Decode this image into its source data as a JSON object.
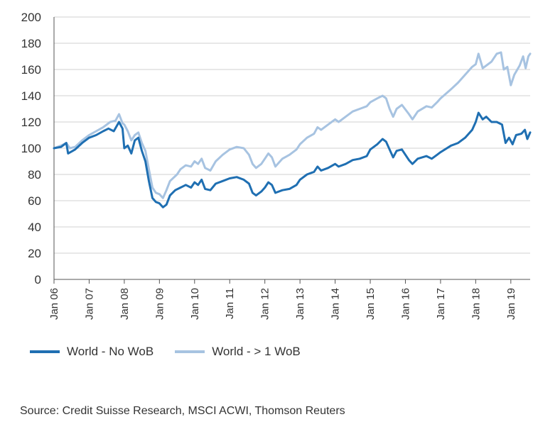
{
  "chart_data": {
    "type": "line",
    "title": "",
    "xlabel": "",
    "ylabel": "",
    "ylim": [
      0,
      200
    ],
    "yticks": [
      "0",
      "20",
      "40",
      "60",
      "80",
      "100",
      "120",
      "140",
      "160",
      "180",
      "200"
    ],
    "xticks": [
      "Jan 06",
      "Jan 07",
      "Jan 08",
      "Jan 09",
      "Jan 10",
      "Jan 11",
      "Jan 12",
      "Jan 13",
      "Jan 14",
      "Jan 15",
      "Jan 16",
      "Jan 17",
      "Jan 18",
      "Jan 19"
    ],
    "xlim": [
      2006.0,
      2019.55
    ],
    "grid": true,
    "legend_position": "bottom-left",
    "series": [
      {
        "name": "World - No WoB",
        "color": "#1f6fb2",
        "points": [
          [
            2006.0,
            100
          ],
          [
            2006.2,
            101
          ],
          [
            2006.35,
            104
          ],
          [
            2006.4,
            96
          ],
          [
            2006.6,
            99
          ],
          [
            2006.8,
            104
          ],
          [
            2007.0,
            108
          ],
          [
            2007.2,
            110
          ],
          [
            2007.4,
            113
          ],
          [
            2007.55,
            115
          ],
          [
            2007.7,
            113
          ],
          [
            2007.85,
            120
          ],
          [
            2007.95,
            115
          ],
          [
            2008.0,
            100
          ],
          [
            2008.1,
            102
          ],
          [
            2008.2,
            96
          ],
          [
            2008.3,
            106
          ],
          [
            2008.4,
            108
          ],
          [
            2008.5,
            98
          ],
          [
            2008.6,
            90
          ],
          [
            2008.7,
            75
          ],
          [
            2008.8,
            62
          ],
          [
            2008.9,
            59
          ],
          [
            2009.0,
            58
          ],
          [
            2009.1,
            55
          ],
          [
            2009.2,
            57
          ],
          [
            2009.3,
            64
          ],
          [
            2009.45,
            68
          ],
          [
            2009.6,
            70
          ],
          [
            2009.75,
            72
          ],
          [
            2009.9,
            70
          ],
          [
            2010.0,
            74
          ],
          [
            2010.1,
            72
          ],
          [
            2010.2,
            76
          ],
          [
            2010.3,
            69
          ],
          [
            2010.45,
            68
          ],
          [
            2010.6,
            73
          ],
          [
            2010.8,
            75
          ],
          [
            2011.0,
            77
          ],
          [
            2011.2,
            78
          ],
          [
            2011.4,
            76
          ],
          [
            2011.55,
            73
          ],
          [
            2011.65,
            66
          ],
          [
            2011.75,
            64
          ],
          [
            2011.9,
            67
          ],
          [
            2012.0,
            70
          ],
          [
            2012.1,
            74
          ],
          [
            2012.2,
            72
          ],
          [
            2012.3,
            66
          ],
          [
            2012.5,
            68
          ],
          [
            2012.7,
            69
          ],
          [
            2012.9,
            72
          ],
          [
            2013.0,
            76
          ],
          [
            2013.2,
            80
          ],
          [
            2013.4,
            82
          ],
          [
            2013.5,
            86
          ],
          [
            2013.6,
            83
          ],
          [
            2013.8,
            85
          ],
          [
            2014.0,
            88
          ],
          [
            2014.1,
            86
          ],
          [
            2014.3,
            88
          ],
          [
            2014.5,
            91
          ],
          [
            2014.7,
            92
          ],
          [
            2014.9,
            94
          ],
          [
            2015.0,
            99
          ],
          [
            2015.2,
            103
          ],
          [
            2015.35,
            107
          ],
          [
            2015.45,
            105
          ],
          [
            2015.55,
            99
          ],
          [
            2015.65,
            93
          ],
          [
            2015.75,
            98
          ],
          [
            2015.9,
            99
          ],
          [
            2016.1,
            91
          ],
          [
            2016.2,
            88
          ],
          [
            2016.35,
            92
          ],
          [
            2016.6,
            94
          ],
          [
            2016.75,
            92
          ],
          [
            2016.9,
            95
          ],
          [
            2017.0,
            97
          ],
          [
            2017.3,
            102
          ],
          [
            2017.5,
            104
          ],
          [
            2017.7,
            108
          ],
          [
            2017.9,
            114
          ],
          [
            2018.0,
            120
          ],
          [
            2018.08,
            127
          ],
          [
            2018.2,
            122
          ],
          [
            2018.3,
            124
          ],
          [
            2018.45,
            120
          ],
          [
            2018.6,
            120
          ],
          [
            2018.75,
            118
          ],
          [
            2018.85,
            104
          ],
          [
            2018.95,
            108
          ],
          [
            2019.05,
            103
          ],
          [
            2019.15,
            110
          ],
          [
            2019.3,
            111
          ],
          [
            2019.4,
            114
          ],
          [
            2019.47,
            107
          ],
          [
            2019.55,
            112
          ]
        ]
      },
      {
        "name": "World - > 1 WoB",
        "color": "#a7c3e1",
        "points": [
          [
            2006.0,
            100
          ],
          [
            2006.2,
            102
          ],
          [
            2006.35,
            104
          ],
          [
            2006.45,
            100
          ],
          [
            2006.6,
            101
          ],
          [
            2006.8,
            106
          ],
          [
            2007.0,
            110
          ],
          [
            2007.2,
            113
          ],
          [
            2007.4,
            116
          ],
          [
            2007.6,
            120
          ],
          [
            2007.75,
            121
          ],
          [
            2007.85,
            126
          ],
          [
            2007.95,
            119
          ],
          [
            2008.0,
            118
          ],
          [
            2008.1,
            113
          ],
          [
            2008.2,
            106
          ],
          [
            2008.3,
            110
          ],
          [
            2008.4,
            112
          ],
          [
            2008.5,
            104
          ],
          [
            2008.6,
            98
          ],
          [
            2008.7,
            84
          ],
          [
            2008.8,
            70
          ],
          [
            2008.9,
            66
          ],
          [
            2009.0,
            65
          ],
          [
            2009.1,
            62
          ],
          [
            2009.2,
            68
          ],
          [
            2009.3,
            75
          ],
          [
            2009.5,
            80
          ],
          [
            2009.6,
            84
          ],
          [
            2009.75,
            87
          ],
          [
            2009.9,
            86
          ],
          [
            2010.0,
            90
          ],
          [
            2010.1,
            88
          ],
          [
            2010.2,
            92
          ],
          [
            2010.3,
            85
          ],
          [
            2010.45,
            83
          ],
          [
            2010.6,
            90
          ],
          [
            2010.8,
            95
          ],
          [
            2011.0,
            99
          ],
          [
            2011.2,
            101
          ],
          [
            2011.4,
            100
          ],
          [
            2011.55,
            95
          ],
          [
            2011.65,
            88
          ],
          [
            2011.75,
            85
          ],
          [
            2011.9,
            88
          ],
          [
            2012.0,
            92
          ],
          [
            2012.1,
            96
          ],
          [
            2012.2,
            93
          ],
          [
            2012.3,
            86
          ],
          [
            2012.5,
            92
          ],
          [
            2012.7,
            95
          ],
          [
            2012.9,
            99
          ],
          [
            2013.0,
            103
          ],
          [
            2013.2,
            108
          ],
          [
            2013.4,
            111
          ],
          [
            2013.5,
            116
          ],
          [
            2013.6,
            114
          ],
          [
            2013.8,
            118
          ],
          [
            2014.0,
            122
          ],
          [
            2014.1,
            120
          ],
          [
            2014.3,
            124
          ],
          [
            2014.5,
            128
          ],
          [
            2014.7,
            130
          ],
          [
            2014.9,
            132
          ],
          [
            2015.0,
            135
          ],
          [
            2015.2,
            138
          ],
          [
            2015.35,
            140
          ],
          [
            2015.45,
            138
          ],
          [
            2015.55,
            130
          ],
          [
            2015.65,
            124
          ],
          [
            2015.75,
            130
          ],
          [
            2015.9,
            133
          ],
          [
            2016.1,
            126
          ],
          [
            2016.2,
            122
          ],
          [
            2016.35,
            128
          ],
          [
            2016.6,
            132
          ],
          [
            2016.75,
            131
          ],
          [
            2016.9,
            135
          ],
          [
            2017.0,
            138
          ],
          [
            2017.3,
            145
          ],
          [
            2017.5,
            150
          ],
          [
            2017.7,
            156
          ],
          [
            2017.9,
            162
          ],
          [
            2018.0,
            164
          ],
          [
            2018.08,
            172
          ],
          [
            2018.2,
            161
          ],
          [
            2018.3,
            163
          ],
          [
            2018.45,
            166
          ],
          [
            2018.6,
            172
          ],
          [
            2018.72,
            173
          ],
          [
            2018.8,
            160
          ],
          [
            2018.9,
            162
          ],
          [
            2019.0,
            148
          ],
          [
            2019.1,
            156
          ],
          [
            2019.25,
            163
          ],
          [
            2019.35,
            170
          ],
          [
            2019.42,
            161
          ],
          [
            2019.5,
            170
          ],
          [
            2019.55,
            172
          ]
        ]
      }
    ]
  },
  "legend": {
    "items": [
      {
        "label": "World - No WoB",
        "color": "#1f6fb2"
      },
      {
        "label": "World - > 1 WoB",
        "color": "#a7c3e1"
      }
    ]
  },
  "source": "Source: Credit Suisse Research, MSCI ACWI, Thomson Reuters"
}
